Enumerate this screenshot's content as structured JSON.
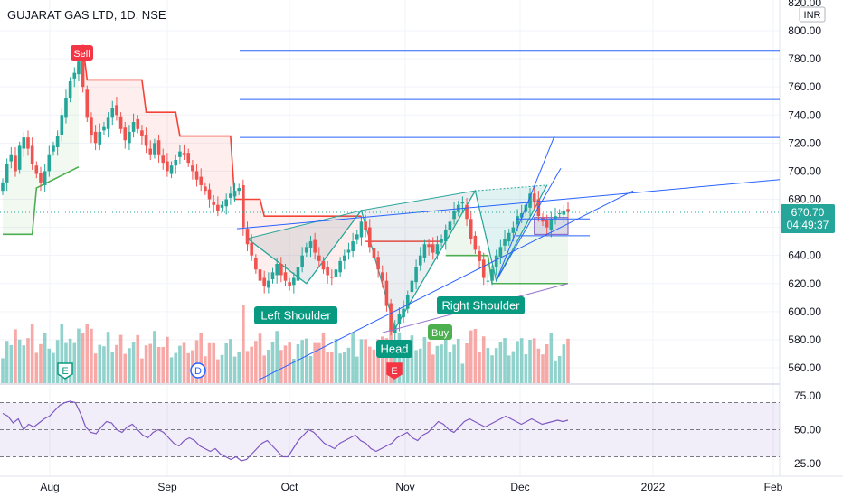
{
  "chart_title": "GUJARAT GAS LTD, 1D, NSE",
  "currency_label": "INR",
  "price_badge": {
    "price": "670.70",
    "countdown": "04:49:37"
  },
  "pattern_labels": {
    "left_shoulder": "Left Shoulder",
    "head": "Head",
    "right_shoulder": "Right Shoulder",
    "sell": "Sell",
    "buy": "Buy"
  },
  "event_markers": [
    {
      "letter": "E",
      "date": "Aug 6",
      "style": "earnings"
    },
    {
      "letter": "D",
      "date": "Sep 29",
      "style": "dividend"
    },
    {
      "letter": "E",
      "date": "Oct 29",
      "style": "earnings-red"
    }
  ],
  "colors": {
    "up": "#26a69a",
    "down": "#ef5350",
    "trend_green": "#4caf50",
    "trend_red": "#f44336",
    "drawing_blue": "#2962ff",
    "rsi_line": "#7e57c2"
  },
  "chart_data": [
    {
      "type": "candlestick",
      "x_tick_labels": [
        "Aug",
        "Sep",
        "Oct",
        "Nov",
        "Dec",
        "2022",
        "Feb"
      ],
      "y_tick_labels": [
        "820.00",
        "800.00",
        "780.00",
        "760.00",
        "740.00",
        "720.00",
        "700.00",
        "680.00",
        "660.00",
        "640.00",
        "620.00",
        "600.00",
        "580.00",
        "560.00"
      ],
      "ylim": [
        553,
        820
      ],
      "grid": true,
      "close_series": [
        692,
        705,
        712,
        700,
        718,
        724,
        716,
        705,
        698,
        692,
        700,
        712,
        718,
        725,
        740,
        752,
        764,
        770,
        778,
        760,
        738,
        726,
        720,
        728,
        732,
        738,
        745,
        740,
        730,
        722,
        728,
        735,
        730,
        725,
        718,
        712,
        720,
        712,
        706,
        700,
        704,
        708,
        714,
        712,
        706,
        700,
        694,
        690,
        686,
        680,
        676,
        672,
        676,
        680,
        684,
        686,
        688,
        660,
        648,
        640,
        630,
        622,
        618,
        622,
        628,
        634,
        626,
        622,
        618,
        624,
        632,
        640,
        646,
        650,
        642,
        636,
        630,
        626,
        624,
        630,
        636,
        640,
        644,
        650,
        655,
        664,
        658,
        646,
        638,
        630,
        622,
        604,
        586,
        590,
        598,
        602,
        612,
        622,
        632,
        640,
        648,
        646,
        642,
        648,
        652,
        658,
        664,
        672,
        676,
        678,
        666,
        652,
        644,
        636,
        624,
        622,
        630,
        640,
        646,
        652,
        656,
        660,
        668,
        670,
        676,
        684,
        678,
        668,
        664,
        660,
        666,
        668,
        670,
        672,
        671
      ],
      "volume_note": "histogram below candles",
      "supertrend": {
        "period": "bands shown as red (above) / green (below)"
      },
      "drawn_levels": [
        786,
        751,
        724
      ],
      "rsi": {
        "y_tick_labels": [
          "75.00",
          "50.00",
          "25.00"
        ],
        "ylim": [
          22,
          82
        ],
        "upper": 70,
        "lower": 30,
        "values": [
          62,
          60,
          55,
          58,
          50,
          54,
          52,
          55,
          58,
          60,
          64,
          68,
          70,
          71,
          70,
          62,
          52,
          48,
          47,
          52,
          56,
          55,
          50,
          48,
          52,
          54,
          50,
          46,
          44,
          48,
          50,
          48,
          44,
          40,
          38,
          42,
          44,
          42,
          38,
          36,
          34,
          36,
          32,
          30,
          28,
          30,
          27,
          28,
          32,
          36,
          40,
          42,
          38,
          34,
          30,
          30,
          36,
          42,
          46,
          50,
          48,
          44,
          40,
          38,
          36,
          40,
          42,
          44,
          46,
          42,
          40,
          36,
          34,
          36,
          38,
          40,
          44,
          46,
          48,
          44,
          42,
          46,
          48,
          52,
          56,
          54,
          50,
          48,
          52,
          56,
          58,
          56,
          54,
          52,
          54,
          56,
          58,
          60,
          58,
          56,
          54,
          56,
          58,
          56,
          54,
          55,
          56,
          57,
          56,
          57
        ]
      }
    }
  ]
}
